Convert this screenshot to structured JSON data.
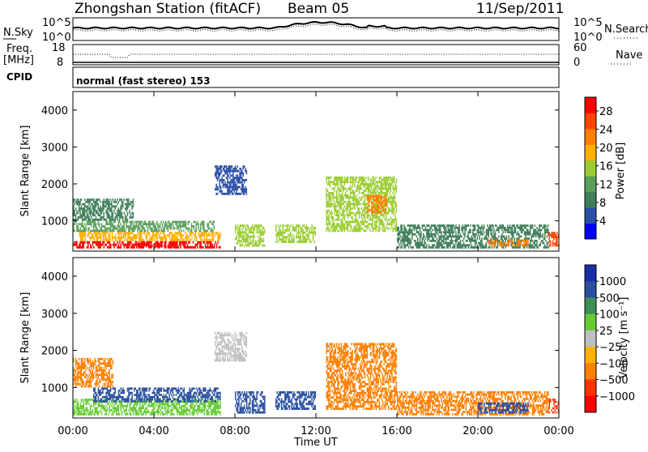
{
  "header": {
    "station": "Zhongshan Station (fitACF)",
    "beam": "Beam 05",
    "date": "11/Sep/2011"
  },
  "panels": {
    "nsky": {
      "label": "N.Sky",
      "ticks": [
        "10^5",
        "10^0"
      ],
      "right_label": "N.Search",
      "right_ticks": [
        "10^5",
        "10^0"
      ]
    },
    "freq": {
      "label_top": "Freq.",
      "label_bottom": "[MHz]",
      "ticks": [
        "18",
        "8"
      ],
      "right_label": "Nave",
      "right_ticks": [
        "60",
        "0"
      ]
    },
    "cpid": {
      "label": "CPID",
      "text": "normal (fast stereo) 153"
    }
  },
  "colors": {
    "power_scale": [
      "#0000ff",
      "#2a4fa8",
      "#3e7e58",
      "#5aa05a",
      "#9acd32",
      "#ffb000",
      "#ff7f00",
      "#ff4500",
      "#ff0000"
    ],
    "velocity_scale": [
      "#ff0000",
      "#ff3300",
      "#ff7f00",
      "#ffb000",
      "#c0c0c0",
      "#66cc33",
      "#3e8e58",
      "#2a50a0",
      "#1a2ea8"
    ],
    "nsky": "#000000"
  },
  "chart_data": [
    {
      "type": "heatmap",
      "name": "power",
      "ylabel": "Slant Range [km]",
      "xlim": [
        "00:00",
        "24:00"
      ],
      "ylim": [
        180,
        4500
      ],
      "yticks": [
        1000,
        2000,
        3000,
        4000
      ],
      "colorbar": {
        "label": "Power [dB]",
        "ticks": [
          4,
          8,
          12,
          16,
          20,
          24,
          28
        ],
        "range": [
          0,
          31
        ]
      },
      "cells": [
        {
          "t0": 0.0,
          "t1": 7.3,
          "r0": 250,
          "r1": 450,
          "level": 28
        },
        {
          "t0": 0.3,
          "t1": 7.3,
          "r0": 450,
          "r1": 700,
          "level": 18
        },
        {
          "t0": 0.0,
          "t1": 7.0,
          "r0": 700,
          "r1": 1000,
          "level": 12
        },
        {
          "t0": 0.0,
          "t1": 3.0,
          "r0": 1000,
          "r1": 1600,
          "level": 8
        },
        {
          "t0": 3.2,
          "t1": 5.0,
          "r0": 280,
          "r1": 400,
          "level": 30
        },
        {
          "t0": 7.0,
          "t1": 8.6,
          "r0": 1700,
          "r1": 2500,
          "level": 6
        },
        {
          "t0": 8.0,
          "t1": 9.5,
          "r0": 300,
          "r1": 900,
          "level": 14
        },
        {
          "t0": 10.0,
          "t1": 12.0,
          "r0": 400,
          "r1": 900,
          "level": 14
        },
        {
          "t0": 12.5,
          "t1": 16.0,
          "r0": 700,
          "r1": 2200,
          "level": 16
        },
        {
          "t0": 14.5,
          "t1": 15.5,
          "r0": 1200,
          "r1": 1700,
          "level": 22
        },
        {
          "t0": 16.0,
          "t1": 23.5,
          "r0": 250,
          "r1": 900,
          "level": 10
        },
        {
          "t0": 20.5,
          "t1": 22.5,
          "r0": 300,
          "r1": 500,
          "level": 22
        },
        {
          "t0": 23.5,
          "t1": 24.0,
          "r0": 300,
          "r1": 700,
          "level": 26
        }
      ]
    },
    {
      "type": "heatmap",
      "name": "velocity",
      "ylabel": "Slant Range [km]",
      "xlabel": "Time UT",
      "xticks": [
        "00:00",
        "04:00",
        "08:00",
        "12:00",
        "16:00",
        "20:00",
        "00:00"
      ],
      "ylim": [
        180,
        4500
      ],
      "yticks": [
        1000,
        2000,
        3000,
        4000
      ],
      "colorbar": {
        "label": "Velocity [m s⁻¹]",
        "ticks": [
          "1000",
          "500",
          "100",
          "25",
          "−25",
          "−100",
          "−500",
          "−1000"
        ]
      },
      "cells": [
        {
          "t0": 0.0,
          "t1": 7.3,
          "r0": 250,
          "r1": 700,
          "level": "100"
        },
        {
          "t0": 1.0,
          "t1": 7.3,
          "r0": 600,
          "r1": 1000,
          "level": "500"
        },
        {
          "t0": 0.0,
          "t1": 2.0,
          "r0": 1000,
          "r1": 1800,
          "level": "-100"
        },
        {
          "t0": 7.0,
          "t1": 8.6,
          "r0": 1700,
          "r1": 2500,
          "level": "25"
        },
        {
          "t0": 8.0,
          "t1": 9.5,
          "r0": 300,
          "r1": 900,
          "level": "500"
        },
        {
          "t0": 10.0,
          "t1": 12.0,
          "r0": 400,
          "r1": 900,
          "level": "500"
        },
        {
          "t0": 12.5,
          "t1": 16.0,
          "r0": 400,
          "r1": 2200,
          "level": "-100"
        },
        {
          "t0": 16.0,
          "t1": 23.5,
          "r0": 250,
          "r1": 900,
          "level": "-100"
        },
        {
          "t0": 20.0,
          "t1": 22.5,
          "r0": 300,
          "r1": 600,
          "level": "500"
        },
        {
          "t0": 23.5,
          "t1": 24.0,
          "r0": 300,
          "r1": 700,
          "level": "-500"
        }
      ]
    }
  ]
}
